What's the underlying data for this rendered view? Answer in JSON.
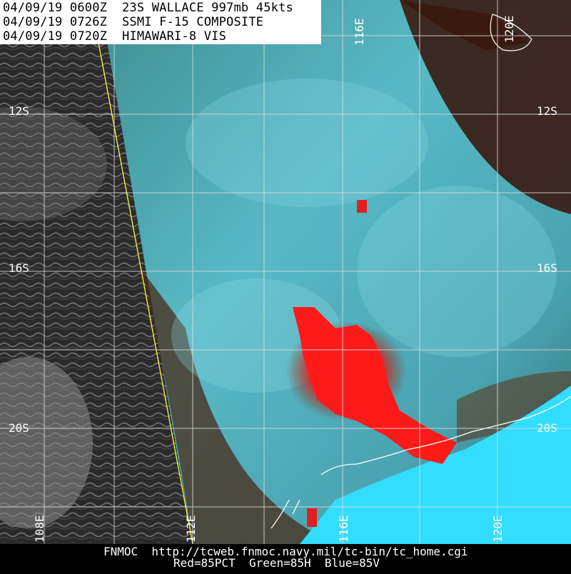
{
  "header": {
    "line1": "04/09/19 0600Z  23S WALLACE 997mb 45kts",
    "line2": "04/09/19 0726Z  SSMI F-15 COMPOSITE",
    "line3": "04/09/19 0720Z  HIMAWARI-8 VIS"
  },
  "lat_labels": [
    "12S",
    "12S",
    "16S",
    "16S",
    "20S",
    "20S"
  ],
  "lon_labels": [
    "116E",
    "120E",
    "108E",
    "112E",
    "116E",
    "120E"
  ],
  "footer": {
    "line1": "FNMOC  http://tcweb.fnmoc.navy.mil/tc-bin/tc_home.cgi",
    "line2": "Red=85PCT  Green=85H  Blue=85V"
  },
  "colors": {
    "storm_core": "#ff1a1a",
    "microwave_cyan": "#5fd0e0",
    "land_brown": "#3a1a10",
    "ocean_cyan": "#33ddff",
    "grid": "#ffffff",
    "swath_edge": "#ffff33"
  }
}
